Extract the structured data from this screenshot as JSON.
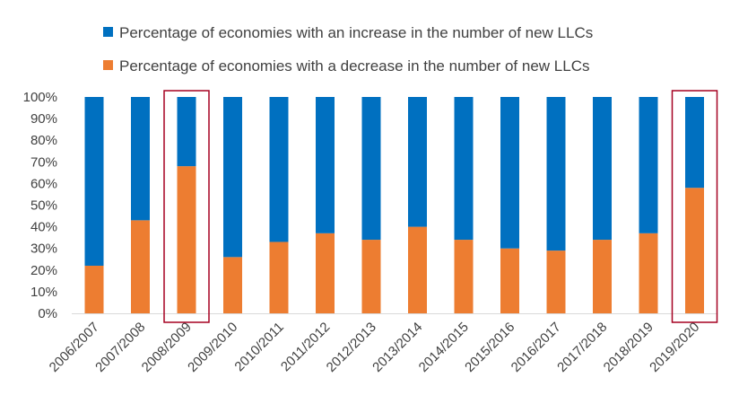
{
  "chart_data": {
    "type": "bar",
    "stacked": true,
    "categories": [
      "2006/2007",
      "2007/2008",
      "2008/2009",
      "2009/2010",
      "2010/2011",
      "2011/2012",
      "2012/2013",
      "2013/2014",
      "2014/2015",
      "2015/2016",
      "2016/2017",
      "2017/2018",
      "2018/2019",
      "2019/2020"
    ],
    "series": [
      {
        "name": "Percentage of economies with a decrease in the number of new LLCs",
        "color": "#ED7D31",
        "values": [
          22,
          43,
          68,
          26,
          33,
          37,
          34,
          40,
          34,
          30,
          29,
          34,
          37,
          58
        ]
      },
      {
        "name": "Percentage of economies with an increase in the number of new LLCs",
        "color": "#0070C0",
        "values": [
          78,
          57,
          32,
          74,
          67,
          63,
          66,
          60,
          66,
          70,
          71,
          66,
          63,
          42
        ]
      }
    ],
    "ylim": [
      0,
      100
    ],
    "yticks": [
      "0%",
      "10%",
      "20%",
      "30%",
      "40%",
      "50%",
      "60%",
      "70%",
      "80%",
      "90%",
      "100%"
    ],
    "legend": {
      "placement": "top",
      "entries": [
        {
          "label": "Percentage of economies with an increase in the number of new LLCs",
          "color": "#0070C0"
        },
        {
          "label": "Percentage of economies with a decrease in the number of new LLCs",
          "color": "#ED7D31"
        }
      ]
    },
    "highlighted_categories": [
      "2008/2009",
      "2019/2020"
    ],
    "highlight_color": "#A50021",
    "grid": false
  }
}
